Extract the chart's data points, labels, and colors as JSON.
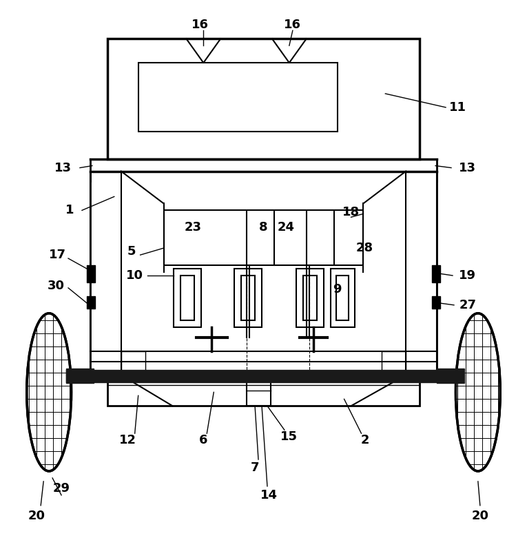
{
  "bg_color": "#ffffff",
  "lc": "#000000",
  "fig_width": 7.65,
  "fig_height": 7.97,
  "dpi": 100
}
